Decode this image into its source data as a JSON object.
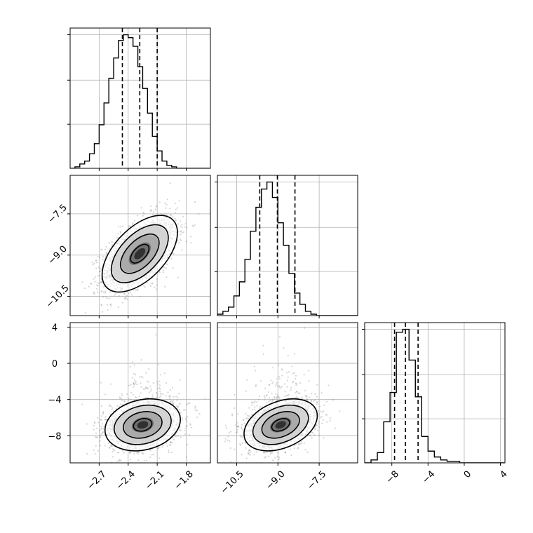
{
  "chart_data": {
    "type": "corner",
    "grid": true,
    "parameters": [
      {
        "axis_range": [
          -3.0,
          -1.55
        ],
        "ticks": [
          -2.7,
          -2.4,
          -2.1,
          -1.8
        ],
        "tick_labels": [
          "−2.7",
          "−2.4",
          "−2.1",
          "−1.8"
        ]
      },
      {
        "axis_range": [
          -11.2,
          -6.1
        ],
        "ticks": [
          -10.5,
          -9.0,
          -7.5
        ],
        "tick_labels": [
          "−10.5",
          "−9.0",
          "−7.5"
        ]
      },
      {
        "axis_range": [
          -11,
          4.5
        ],
        "ticks": [
          -8,
          -4,
          0,
          4
        ],
        "tick_labels": [
          "−8",
          "−4",
          "0",
          "4"
        ]
      }
    ],
    "quantiles": [
      {
        "q16": -2.46,
        "q50": -2.28,
        "q84": -2.1
      },
      {
        "q16": -9.66,
        "q50": -9.02,
        "q84": -8.38
      },
      {
        "q16": -7.7,
        "q50": -6.5,
        "q84": -5.1
      }
    ],
    "histograms": [
      {
        "bin_start": -3.0,
        "bin_width": 0.05,
        "counts": [
          0,
          1,
          3,
          5,
          10,
          17,
          30,
          45,
          62,
          76,
          88,
          92,
          90,
          84,
          70,
          55,
          38,
          22,
          12,
          5,
          2,
          1,
          0,
          0,
          0,
          0,
          0,
          0,
          0
        ]
      },
      {
        "bin_start": -11.2,
        "bin_width": 0.2,
        "counts": [
          1,
          3,
          6,
          14,
          24,
          40,
          60,
          77,
          90,
          95,
          84,
          66,
          50,
          30,
          16,
          8,
          3,
          1,
          0,
          0,
          0,
          0,
          0,
          0,
          0,
          0
        ]
      },
      {
        "bin_start": -11.0,
        "bin_width": 0.7,
        "counts": [
          0,
          2,
          7,
          28,
          48,
          89,
          91,
          70,
          45,
          18,
          8,
          4,
          2,
          1,
          1,
          0,
          0,
          0,
          0,
          0,
          0,
          0
        ]
      }
    ],
    "pairs": [
      {
        "x_param": 0,
        "y_param": 1,
        "mean": [
          -2.28,
          -8.95
        ],
        "sd": [
          0.19,
          0.68
        ],
        "rho": 0.55
      },
      {
        "x_param": 0,
        "y_param": 2,
        "mean": [
          -2.25,
          -6.8
        ],
        "sd": [
          0.19,
          1.4
        ],
        "rho": 0.2
      },
      {
        "x_param": 1,
        "y_param": 2,
        "mean": [
          -8.9,
          -6.8
        ],
        "sd": [
          0.65,
          1.4
        ],
        "rho": 0.35
      }
    ]
  }
}
